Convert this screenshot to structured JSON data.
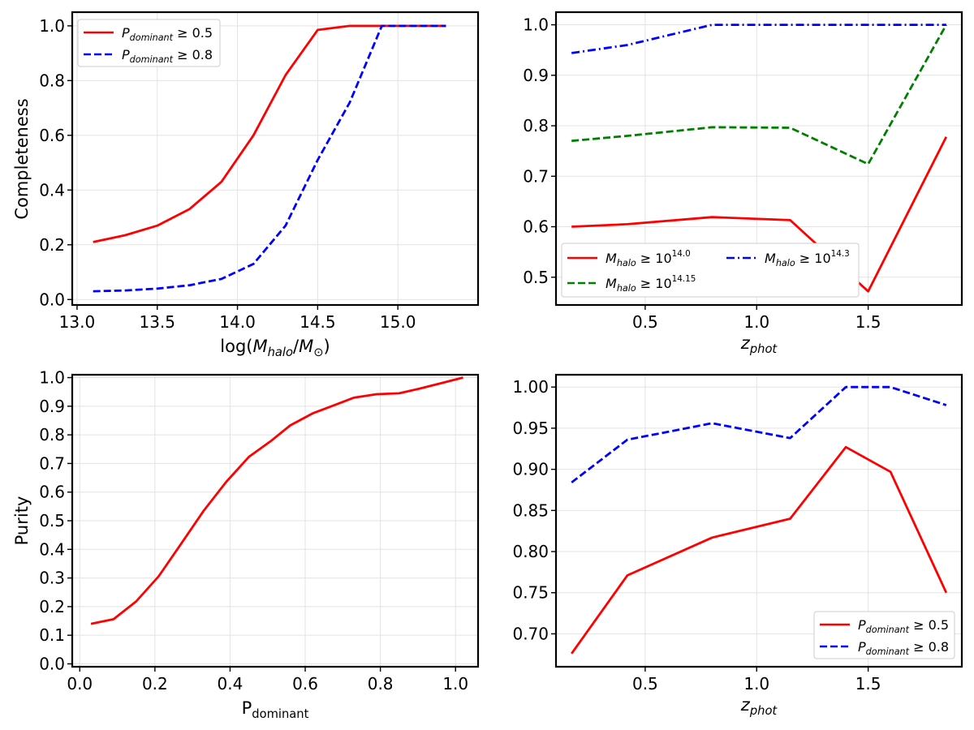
{
  "chart_data": [
    {
      "type": "line",
      "panel": "top-left",
      "xlabel": "log(M_halo/M_⊙)",
      "ylabel": "Completeness",
      "xlim": [
        12.97,
        15.5
      ],
      "ylim": [
        -0.02,
        1.05
      ],
      "xticks": [
        13.0,
        13.5,
        14.0,
        14.5,
        15.0
      ],
      "xtick_labels": [
        "13.0",
        "13.5",
        "14.0",
        "14.5",
        "15.0"
      ],
      "yticks": [
        0.0,
        0.2,
        0.4,
        0.6,
        0.8,
        1.0
      ],
      "ytick_labels": [
        "0.0",
        "0.2",
        "0.4",
        "0.6",
        "0.8",
        "1.0"
      ],
      "grid": true,
      "legend_position": "upper-left",
      "series": [
        {
          "name": "P_dominant ≥ 0.5",
          "color": "#ff0000",
          "style": "solid",
          "x": [
            13.1,
            13.3,
            13.5,
            13.7,
            13.9,
            14.1,
            14.3,
            14.5,
            14.7,
            14.9,
            15.1,
            15.3
          ],
          "y": [
            0.21,
            0.235,
            0.27,
            0.33,
            0.43,
            0.6,
            0.82,
            0.985,
            1.0,
            1.0,
            1.0,
            1.0
          ]
        },
        {
          "name": "P_dominant ≥ 0.8",
          "color": "#0000ff",
          "style": "dashed",
          "x": [
            13.1,
            13.3,
            13.5,
            13.7,
            13.9,
            14.1,
            14.3,
            14.5,
            14.7,
            14.9,
            15.1,
            15.3
          ],
          "y": [
            0.03,
            0.033,
            0.04,
            0.052,
            0.075,
            0.13,
            0.27,
            0.51,
            0.72,
            1.0,
            1.0,
            1.0
          ]
        }
      ]
    },
    {
      "type": "line",
      "panel": "top-right",
      "xlabel": "z_phot",
      "ylabel": "",
      "xlim": [
        0.1,
        1.92
      ],
      "ylim": [
        0.445,
        1.025
      ],
      "xticks": [
        0.5,
        1.0,
        1.5
      ],
      "xtick_labels": [
        "0.5",
        "1.0",
        "1.5"
      ],
      "yticks": [
        0.5,
        0.6,
        0.7,
        0.8,
        0.9,
        1.0
      ],
      "ytick_labels": [
        "0.5",
        "0.6",
        "0.7",
        "0.8",
        "0.9",
        "1.0"
      ],
      "grid": true,
      "legend_position": "lower-left",
      "series": [
        {
          "name": "M_halo ≥ 10^14.0",
          "color": "#ff0000",
          "style": "solid",
          "x": [
            0.17,
            0.42,
            0.8,
            1.15,
            1.5,
            1.85
          ],
          "y": [
            0.6,
            0.605,
            0.619,
            0.613,
            0.472,
            0.778
          ]
        },
        {
          "name": "M_halo ≥ 10^14.15",
          "color": "#008000",
          "style": "dashed",
          "x": [
            0.17,
            0.42,
            0.8,
            1.15,
            1.5,
            1.85
          ],
          "y": [
            0.77,
            0.78,
            0.797,
            0.796,
            0.724,
            1.0
          ]
        },
        {
          "name": "M_halo ≥ 10^14.3",
          "color": "#0000ff",
          "style": "dashdot",
          "x": [
            0.17,
            0.42,
            0.8,
            1.15,
            1.5,
            1.85
          ],
          "y": [
            0.944,
            0.96,
            1.0,
            1.0,
            1.0,
            1.0
          ]
        }
      ]
    },
    {
      "type": "line",
      "panel": "bottom-left",
      "xlabel": "P_dominant",
      "ylabel": "Purity",
      "xlim": [
        -0.02,
        1.06
      ],
      "ylim": [
        -0.01,
        1.01
      ],
      "xticks": [
        0.0,
        0.2,
        0.4,
        0.6,
        0.8,
        1.0
      ],
      "xtick_labels": [
        "0.0",
        "0.2",
        "0.4",
        "0.6",
        "0.8",
        "1.0"
      ],
      "yticks": [
        0.0,
        0.1,
        0.2,
        0.3,
        0.4,
        0.5,
        0.6,
        0.7,
        0.8,
        0.9,
        1.0
      ],
      "ytick_labels": [
        "0.0",
        "0.1",
        "0.2",
        "0.3",
        "0.4",
        "0.5",
        "0.6",
        "0.7",
        "0.8",
        "0.9",
        "1.0"
      ],
      "grid": true,
      "series": [
        {
          "name": "Purity",
          "color": "#ff0000",
          "style": "solid",
          "x": [
            0.03,
            0.09,
            0.15,
            0.21,
            0.27,
            0.33,
            0.39,
            0.45,
            0.51,
            0.56,
            0.62,
            0.68,
            0.73,
            0.79,
            0.85,
            0.9,
            0.96,
            1.02
          ],
          "y": [
            0.14,
            0.156,
            0.218,
            0.306,
            0.42,
            0.535,
            0.636,
            0.723,
            0.78,
            0.833,
            0.875,
            0.905,
            0.93,
            0.942,
            0.945,
            0.96,
            0.98,
            1.0
          ]
        }
      ]
    },
    {
      "type": "line",
      "panel": "bottom-right",
      "xlabel": "z_phot",
      "ylabel": "",
      "xlim": [
        0.1,
        1.92
      ],
      "ylim": [
        0.66,
        1.015
      ],
      "xticks": [
        0.5,
        1.0,
        1.5
      ],
      "xtick_labels": [
        "0.5",
        "1.0",
        "1.5"
      ],
      "yticks": [
        0.7,
        0.75,
        0.8,
        0.85,
        0.9,
        0.95,
        1.0
      ],
      "ytick_labels": [
        "0.70",
        "0.75",
        "0.80",
        "0.85",
        "0.90",
        "0.95",
        "1.00"
      ],
      "grid": true,
      "legend_position": "lower-right",
      "series": [
        {
          "name": "P_dominant ≥ 0.5",
          "color": "#ff0000",
          "style": "solid",
          "x": [
            0.17,
            0.42,
            0.8,
            1.15,
            1.4,
            1.6,
            1.85
          ],
          "y": [
            0.676,
            0.771,
            0.817,
            0.84,
            0.927,
            0.897,
            0.75
          ]
        },
        {
          "name": "P_dominant ≥ 0.8",
          "color": "#0000ff",
          "style": "dashed",
          "x": [
            0.17,
            0.42,
            0.8,
            1.15,
            1.4,
            1.6,
            1.85
          ],
          "y": [
            0.884,
            0.936,
            0.956,
            0.938,
            1.0,
            1.0,
            0.978
          ]
        }
      ]
    }
  ]
}
